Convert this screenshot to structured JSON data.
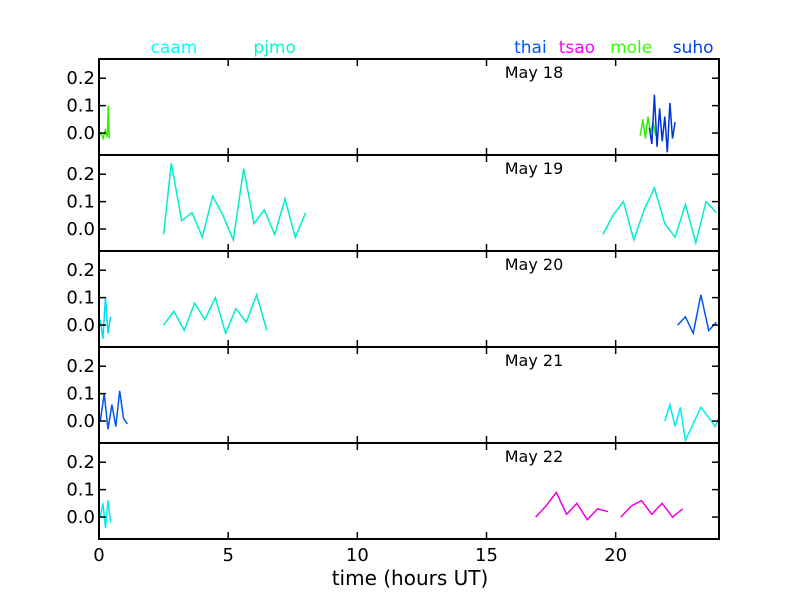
{
  "chart_data": {
    "type": "line",
    "xlabel": "time (hours UT)",
    "xlim": [
      0,
      24
    ],
    "x_ticks": [
      0,
      5,
      10,
      15,
      20
    ],
    "ylim": [
      -0.08,
      0.27
    ],
    "y_ticks": [
      0.0,
      0.1,
      0.2
    ],
    "y_tick_labels": [
      "0.0",
      "0.1",
      "0.2"
    ],
    "station_labels": [
      {
        "name": "caam",
        "color": "#00ffff",
        "at_hour": 2.9
      },
      {
        "name": "pjmo",
        "color": "#00ffcc",
        "at_hour": 6.8
      },
      {
        "name": "thai",
        "color": "#0055ff",
        "at_hour": 16.7
      },
      {
        "name": "tsao",
        "color": "#ff00ff",
        "at_hour": 18.5
      },
      {
        "name": "mole",
        "color": "#33ff00",
        "at_hour": 20.6
      },
      {
        "name": "suho",
        "color": "#0044dd",
        "at_hour": 23.0
      }
    ],
    "panels": [
      {
        "date": "May 18",
        "series": [
          {
            "color": "#33ee00",
            "x": [
              0.0,
              0.08,
              0.16,
              0.24,
              0.32,
              0.36,
              0.4
            ],
            "y": [
              -0.01,
              0.0,
              -0.02,
              0.01,
              -0.015,
              0.1,
              -0.02
            ]
          },
          {
            "color": "#33ee00",
            "x": [
              20.95,
              21.05,
              21.15,
              21.25,
              21.35,
              21.45,
              21.55
            ],
            "y": [
              -0.01,
              0.05,
              -0.02,
              0.06,
              0.0,
              0.04,
              -0.01
            ]
          },
          {
            "color": "#0033dd",
            "x": [
              21.3,
              21.4,
              21.5,
              21.6,
              21.7,
              21.8,
              21.9,
              22.0,
              22.1,
              22.2,
              22.3
            ],
            "y": [
              0.02,
              -0.04,
              0.14,
              -0.05,
              0.09,
              -0.03,
              0.06,
              -0.07,
              0.11,
              -0.02,
              0.04
            ]
          }
        ]
      },
      {
        "date": "May 19",
        "series": [
          {
            "color": "#00eecc",
            "x": [
              2.5,
              2.8,
              3.2,
              3.6,
              4.0,
              4.4,
              4.8,
              5.2,
              5.6,
              6.0,
              6.4,
              6.8,
              7.2,
              7.6,
              8.0
            ],
            "y": [
              -0.02,
              0.24,
              0.03,
              0.06,
              -0.03,
              0.12,
              0.05,
              -0.04,
              0.22,
              0.02,
              0.07,
              -0.02,
              0.11,
              -0.03,
              0.06
            ]
          },
          {
            "color": "#00eecc",
            "x": [
              19.5,
              19.9,
              20.3,
              20.7,
              21.1,
              21.5,
              21.9,
              22.3,
              22.7,
              23.1,
              23.5,
              23.9
            ],
            "y": [
              -0.02,
              0.05,
              0.1,
              -0.04,
              0.07,
              0.15,
              0.02,
              -0.03,
              0.09,
              -0.05,
              0.1,
              0.06
            ]
          }
        ]
      },
      {
        "date": "May 20",
        "series": [
          {
            "color": "#00ddee",
            "x": [
              0.05,
              0.15,
              0.25,
              0.35,
              0.45
            ],
            "y": [
              0.02,
              -0.05,
              0.1,
              -0.03,
              0.03
            ]
          },
          {
            "color": "#00eecc",
            "x": [
              2.5,
              2.9,
              3.3,
              3.7,
              4.1,
              4.5,
              4.9,
              5.3,
              5.7,
              6.1,
              6.5
            ],
            "y": [
              0.0,
              0.05,
              -0.02,
              0.08,
              0.02,
              0.1,
              -0.03,
              0.06,
              0.01,
              0.11,
              -0.02
            ]
          },
          {
            "color": "#0055ee",
            "x": [
              22.4,
              22.7,
              23.0,
              23.3,
              23.6,
              23.9
            ],
            "y": [
              0.0,
              0.03,
              -0.03,
              0.11,
              -0.02,
              0.01
            ]
          }
        ]
      },
      {
        "date": "May 21",
        "series": [
          {
            "color": "#0055ee",
            "x": [
              0.05,
              0.2,
              0.35,
              0.5,
              0.65,
              0.8,
              0.95,
              1.1
            ],
            "y": [
              0.0,
              0.1,
              -0.03,
              0.06,
              -0.02,
              0.11,
              0.01,
              -0.01
            ]
          },
          {
            "color": "#00eeee",
            "x": [
              21.9,
              22.1,
              22.3,
              22.5,
              22.7,
              23.3,
              23.7,
              23.85,
              24.0
            ],
            "y": [
              0.0,
              0.06,
              -0.02,
              0.05,
              -0.07,
              0.05,
              0.0,
              -0.02,
              0.01
            ]
          }
        ]
      },
      {
        "date": "May 22",
        "series": [
          {
            "color": "#00eeee",
            "x": [
              0.05,
              0.15,
              0.25,
              0.35,
              0.45
            ],
            "y": [
              0.0,
              0.05,
              -0.04,
              0.06,
              -0.02
            ]
          },
          {
            "color": "#ee00dd",
            "x": [
              16.9,
              17.3,
              17.7,
              18.1,
              18.5,
              18.9,
              19.3,
              19.7
            ],
            "y": [
              0.0,
              0.04,
              0.09,
              0.01,
              0.05,
              -0.01,
              0.03,
              0.02
            ]
          },
          {
            "color": "#ee00dd",
            "x": [
              20.2,
              20.6,
              21.0,
              21.4,
              21.8,
              22.2,
              22.6
            ],
            "y": [
              0.0,
              0.04,
              0.06,
              0.01,
              0.05,
              0.0,
              0.03
            ]
          }
        ]
      }
    ]
  }
}
